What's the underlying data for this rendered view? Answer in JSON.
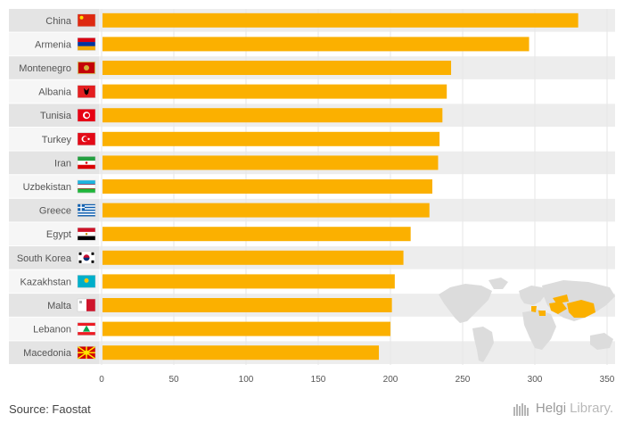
{
  "chart_data": {
    "type": "bar",
    "orientation": "horizontal",
    "categories": [
      "China",
      "Armenia",
      "Montenegro",
      "Albania",
      "Tunisia",
      "Turkey",
      "Iran",
      "Uzbekistan",
      "Greece",
      "Egypt",
      "South Korea",
      "Kazakhstan",
      "Malta",
      "Lebanon",
      "Macedonia"
    ],
    "values": [
      330,
      296,
      242,
      239,
      236,
      234,
      233,
      229,
      227,
      214,
      209,
      203,
      201,
      200,
      192
    ],
    "xlim": [
      0,
      350
    ],
    "xticks": [
      0,
      50,
      100,
      150,
      200,
      250,
      300,
      350
    ],
    "bar_color": "#fbb000",
    "grid": true,
    "inset_map": "world-map"
  },
  "flags": [
    "china-flag",
    "armenia-flag",
    "montenegro-flag",
    "albania-flag",
    "tunisia-flag",
    "turkey-flag",
    "iran-flag",
    "uzbekistan-flag",
    "greece-flag",
    "egypt-flag",
    "south-korea-flag",
    "kazakhstan-flag",
    "malta-flag",
    "lebanon-flag",
    "macedonia-flag"
  ],
  "footer": {
    "source": "Source: Faostat",
    "brand_main": "Helgi",
    "brand_light": "Library."
  }
}
